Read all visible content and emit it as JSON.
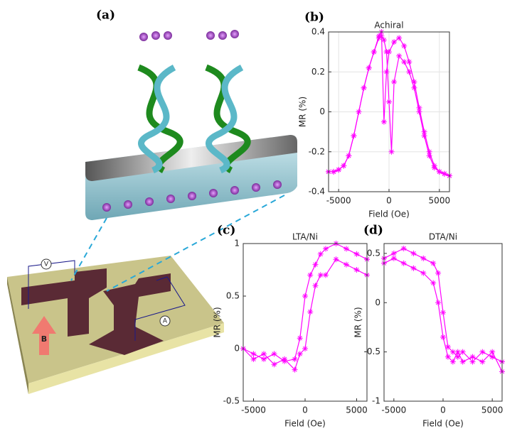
{
  "illustration": {
    "label": "(a)",
    "voltmeter": "V",
    "ammeter": "A",
    "field": "B"
  },
  "chart_data": [
    {
      "type": "line",
      "panel_label": "(b)",
      "title": "Achiral",
      "xlabel": "Field (Oe)",
      "ylabel": "MR (%)",
      "xlim": [
        -6000,
        6000
      ],
      "xticks": [
        -5000,
        0,
        5000
      ],
      "ylim": [
        -0.4,
        0.4
      ],
      "yticks": [
        -0.4,
        -0.2,
        0,
        0.2,
        0.4
      ],
      "grid": true,
      "series": [
        {
          "color": "#ff00ff",
          "x": [
            -6000,
            -5500,
            -5000,
            -4500,
            -4000,
            -3500,
            -3000,
            -2500,
            -2000,
            -1500,
            -1000,
            -750,
            -500,
            -250,
            0,
            500,
            1000,
            1500,
            2000,
            2500,
            3000,
            3500,
            4000,
            4500,
            5000,
            5500,
            6000
          ],
          "values": [
            -0.3,
            -0.3,
            -0.29,
            -0.27,
            -0.22,
            -0.12,
            0.0,
            0.12,
            0.22,
            0.3,
            0.38,
            0.4,
            -0.05,
            0.2,
            0.3,
            0.35,
            0.37,
            0.33,
            0.25,
            0.15,
            0.02,
            -0.1,
            -0.2,
            -0.27,
            -0.3,
            -0.31,
            -0.32
          ]
        },
        {
          "color": "#ff00ff",
          "x": [
            -6000,
            -5500,
            -5000,
            -4500,
            -4000,
            -3500,
            -3000,
            -2500,
            -2000,
            -1500,
            -1000,
            -750,
            -500,
            -250,
            0,
            250,
            500,
            1000,
            1500,
            2000,
            2500,
            3000,
            3500,
            4000,
            4500,
            5000,
            5500,
            6000
          ],
          "values": [
            -0.3,
            -0.3,
            -0.29,
            -0.27,
            -0.22,
            -0.12,
            0.0,
            0.12,
            0.22,
            0.3,
            0.37,
            0.38,
            0.36,
            0.3,
            0.05,
            -0.2,
            0.15,
            0.28,
            0.25,
            0.2,
            0.12,
            0.0,
            -0.12,
            -0.22,
            -0.28,
            -0.3,
            -0.31,
            -0.32
          ]
        }
      ]
    },
    {
      "type": "line",
      "panel_label": "(c)",
      "title": "LTA/Ni",
      "xlabel": "Field (Oe)",
      "ylabel": "MR (%)",
      "xlim": [
        -6000,
        6000
      ],
      "xticks": [
        -5000,
        0,
        5000
      ],
      "ylim": [
        -0.5,
        1
      ],
      "yticks": [
        -0.5,
        0,
        0.5,
        1
      ],
      "grid": false,
      "series": [
        {
          "color": "#ff00ff",
          "x": [
            -6000,
            -5000,
            -4000,
            -3000,
            -2000,
            -1000,
            -500,
            0,
            500,
            1000,
            1500,
            2000,
            3000,
            4000,
            5000,
            6000
          ],
          "values": [
            0,
            -0.05,
            -0.1,
            -0.05,
            -0.12,
            -0.1,
            0.1,
            0.5,
            0.7,
            0.8,
            0.9,
            0.95,
            1.0,
            0.95,
            0.9,
            0.85
          ]
        },
        {
          "color": "#ff00ff",
          "x": [
            -6000,
            -5000,
            -4000,
            -3000,
            -2000,
            -1000,
            -500,
            0,
            500,
            1000,
            1500,
            2000,
            3000,
            4000,
            5000,
            6000
          ],
          "values": [
            0,
            -0.1,
            -0.05,
            -0.15,
            -0.1,
            -0.2,
            -0.05,
            0.0,
            0.35,
            0.6,
            0.7,
            0.7,
            0.85,
            0.8,
            0.75,
            0.7
          ]
        }
      ]
    },
    {
      "type": "line",
      "panel_label": "(d)",
      "title": "DTA/Ni",
      "xlabel": "Field (Oe)",
      "ylabel": "MR (%)",
      "xlim": [
        -6000,
        6000
      ],
      "xticks": [
        -5000,
        0,
        5000
      ],
      "ylim": [
        -1,
        0.6
      ],
      "yticks": [
        -1,
        -0.5,
        0,
        0.5
      ],
      "grid": false,
      "series": [
        {
          "color": "#ff00ff",
          "x": [
            -6000,
            -5000,
            -4000,
            -3000,
            -2000,
            -1000,
            -500,
            0,
            500,
            1000,
            1500,
            2000,
            3000,
            4000,
            5000,
            6000
          ],
          "values": [
            0.45,
            0.5,
            0.55,
            0.5,
            0.45,
            0.4,
            0.3,
            -0.1,
            -0.45,
            -0.5,
            -0.55,
            -0.5,
            -0.6,
            -0.5,
            -0.55,
            -0.6
          ]
        },
        {
          "color": "#ff00ff",
          "x": [
            -6000,
            -5000,
            -4000,
            -3000,
            -2000,
            -1000,
            -500,
            0,
            500,
            1000,
            1500,
            2000,
            3000,
            4000,
            5000,
            6000
          ],
          "values": [
            0.4,
            0.45,
            0.4,
            0.35,
            0.3,
            0.2,
            0.0,
            -0.35,
            -0.55,
            -0.6,
            -0.5,
            -0.6,
            -0.55,
            -0.6,
            -0.5,
            -0.7
          ]
        }
      ]
    }
  ]
}
